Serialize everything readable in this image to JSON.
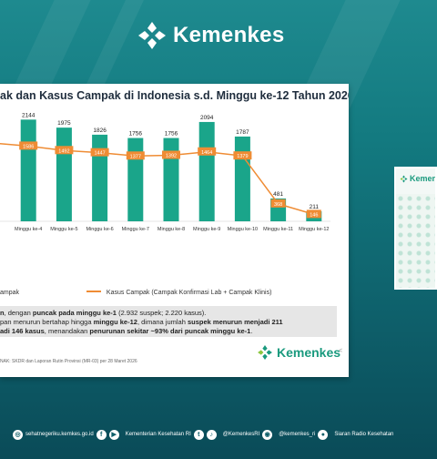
{
  "brand": {
    "name": "Kemenkes",
    "color": "#1a9a7e"
  },
  "slide": {
    "title": "ak dan Kasus Campak di Indonesia s.d. Minggu ke-12 Tahun 2026",
    "legend_left": "ampak",
    "legend_right": "Kasus Campak (Campak Konfirmasi Lab + Campak Klinis)",
    "note_line1_bold1": "n",
    "note_line1_text1": ", dengan ",
    "note_line1_bold2": "puncak pada minggu ke-1",
    "note_line1_text2": " (2.932 suspek; 2.220 kasus).",
    "note_line2_text1": "pan menurun bertahap hingga ",
    "note_line2_bold1": "minggu ke-12",
    "note_line2_text2": ", dimana jumlah ",
    "note_line2_bold2": "suspek menurun menjadi 211",
    "note_line3_bold1": "adi 146 kasus",
    "note_line3_text1": ", menandakan ",
    "note_line3_bold2": "penurunan sekitar ~93% dari puncak minggu ke-1",
    "note_line3_text2": ".",
    "source": "NAK: SKDR dan Laporan Rutin Provinsi (MR-03) per 28 Maret 2026",
    "scroll_mark": "<"
  },
  "footer": {
    "website": "sehatnegeriku.kemkes.go.id",
    "youtube": "Kementerian Kesehatan RI",
    "twitter": "@KemenkesRI",
    "instagram": "@kemenkes_ri",
    "radio": "Siaran Radio Kesehatan"
  },
  "chart_data": {
    "type": "bar",
    "categories": [
      "Minggu ke-3",
      "Minggu ke-4",
      "Minggu ke-5",
      "Minggu ke-6",
      "Minggu ke-7",
      "Minggu ke-8",
      "Minggu ke-9",
      "Minggu ke-10",
      "Minggu ke-11",
      "Minggu ke-12"
    ],
    "category_labels": [
      "u ke-3",
      "Minggu ke-4",
      "Minggu ke-5",
      "Minggu ke-6",
      "Minggu ke-7",
      "Minggu ke-8",
      "Minggu ke-9",
      "Minggu ke-10",
      "Minggu ke-11",
      "Minggu ke-12"
    ],
    "series": [
      {
        "name": "",
        "type": "bar",
        "color": "#1aa58a",
        "values": [
          null,
          2144,
          1975,
          1826,
          1756,
          1756,
          2094,
          1787,
          481,
          211
        ]
      },
      {
        "name": "Kasus Campak (Campak Konfirmasi Lab + Campak Klinis)",
        "type": "line",
        "color": "#ef8c34",
        "values": [
          1650,
          1586,
          1492,
          1447,
          1377,
          1392,
          1464,
          1379,
          368,
          146
        ]
      }
    ],
    "value_labels_bar": [
      "",
      "2144",
      "1975",
      "1826",
      "1756",
      "1756",
      "2094",
      "1787",
      "481",
      "211"
    ],
    "value_labels_line": [
      "650",
      "1586",
      "1492",
      "1447",
      "1377",
      "1392",
      "1464",
      "1379",
      "368",
      "146"
    ],
    "ylim": [
      0,
      2400
    ],
    "grid": false
  }
}
